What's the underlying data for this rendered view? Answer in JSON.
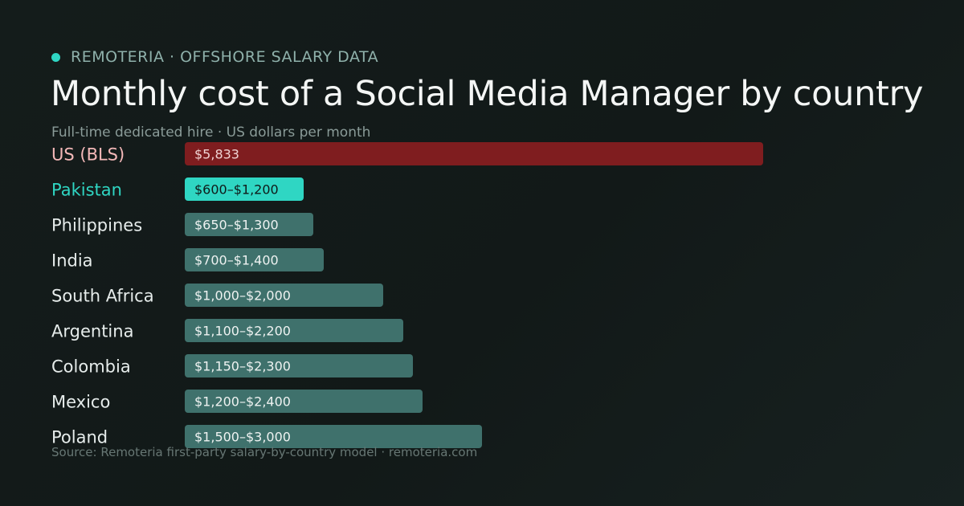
{
  "header": {
    "brand": "REMOTERIA · OFFSHORE SALARY DATA",
    "title": "Monthly cost of a Social Media Manager by country",
    "subtitle": "Full-time dedicated hire · US dollars per month"
  },
  "footer": {
    "source": "Source: Remoteria first-party salary-by-country model · remoteria.com"
  },
  "colors": {
    "accent": "#2fd6c3",
    "us_bar": "#7f1d1f",
    "us_label": "#f3b8b8",
    "highlight_bar": "#2fd6c3",
    "highlight_label": "#2fd6c3",
    "default_bar": "#3f716c",
    "default_label": "#e6eceb"
  },
  "chart_data": {
    "type": "bar",
    "orientation": "horizontal",
    "title": "Monthly cost of a Social Media Manager by country",
    "subtitle": "Full-time dedicated hire · US dollars per month",
    "unit": "USD per month",
    "xlim": [
      0,
      6000
    ],
    "grid": false,
    "legend": "none",
    "categories": [
      "US (BLS)",
      "Pakistan",
      "Philippines",
      "India",
      "South Africa",
      "Argentina",
      "Colombia",
      "Mexico",
      "Poland"
    ],
    "values": [
      5833,
      1200,
      1300,
      1400,
      2000,
      2200,
      2300,
      2400,
      3000
    ],
    "range_low": [
      null,
      600,
      650,
      700,
      1000,
      1100,
      1150,
      1200,
      1500
    ],
    "labels": [
      "$5,833",
      "$600–$1,200",
      "$650–$1,300",
      "$700–$1,400",
      "$1,000–$2,000",
      "$1,100–$2,200",
      "$1,150–$2,300",
      "$1,200–$2,400",
      "$1,500–$3,000"
    ],
    "roles": [
      "us",
      "highlight",
      "default",
      "default",
      "default",
      "default",
      "default",
      "default",
      "default"
    ]
  }
}
